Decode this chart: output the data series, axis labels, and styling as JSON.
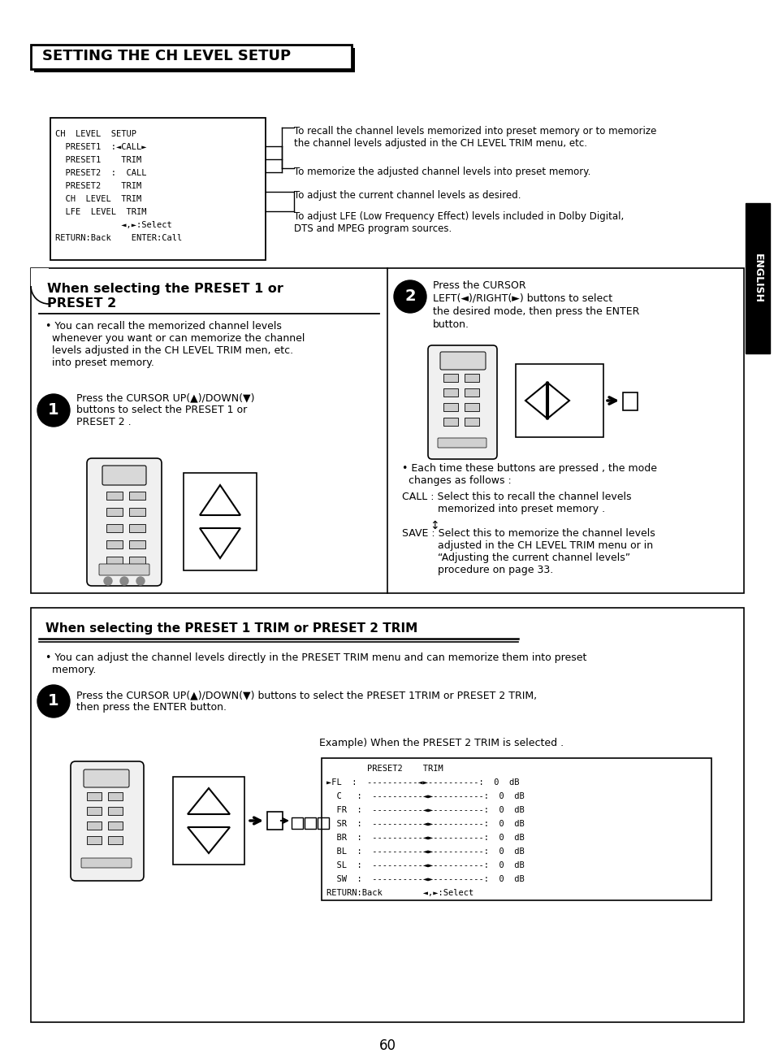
{
  "page_number": "60",
  "bg_color": "#ffffff",
  "title": "SETTING THE CH LEVEL SETUP",
  "ch_level_box_lines": [
    "CH  LEVEL  SETUP",
    "  PRESET1  :◄CALL►",
    "  PRESET1    TRIM",
    "  PRESET2  :  CALL",
    "  PRESET2    TRIM",
    "  CH  LEVEL  TRIM",
    "  LFE  LEVEL  TRIM",
    "             ◄,►:Select",
    "RETURN:Back    ENTER:Call"
  ],
  "ann1": "To recall the channel levels memorized into preset memory or to memorize\nthe channel levels adjusted in the CH LEVEL TRIM menu, etc.",
  "ann2": "To memorize the adjusted channel levels into preset memory.",
  "ann3": "To adjust the current channel levels as desired.",
  "ann4": "To adjust LFE (Low Frequency Effect) levels included in Dolby Digital,\nDTS and MPEG program sources.",
  "s1_title_line1": "When selecting the PRESET 1 or",
  "s1_title_line2": "PRESET 2",
  "s1_bullet": "• You can recall the memorized channel levels\n  whenever you want or can memorize the channel\n  levels adjusted in the CH LEVEL TRIM men, etc.\n  into preset memory.",
  "s1_step1": "Press the CURSOR UP(▲)/DOWN(▼)\nbuttons to select the PRESET 1 or\nPRESET 2 .",
  "s1_step2_line1": "Press the CURSOR",
  "s1_step2_line2": "LEFT(◄)/RIGHT(►) buttons to select",
  "s1_step2_line3": "the desired mode, then press the ENTER",
  "s1_step2_line4": "button.",
  "s1_each_time": "• Each time these buttons are pressed , the mode\n  changes as follows :",
  "s1_call": "CALL : Select this to recall the channel levels\n           memorized into preset memory .",
  "s1_arrow": "↕",
  "s1_save": "SAVE : Select this to memorize the channel levels\n           adjusted in the CH LEVEL TRIM menu or in\n           “Adjusting the current channel levels”\n           procedure on page 33.",
  "s2_title": "When selecting the PRESET 1 TRIM or PRESET 2 TRIM",
  "s2_bullet": "• You can adjust the channel levels directly in the PRESET TRIM menu and can memorize them into preset\n  memory.",
  "s2_step1": "Press the CURSOR UP(▲)/DOWN(▼) buttons to select the PRESET 1TRIM or PRESET 2 TRIM,\nthen press the ENTER button.",
  "s2_example": "Example) When the PRESET 2 TRIM is selected .",
  "trim_lines": [
    "        PRESET2    TRIM",
    "►FL  :  ----------◄►----------:  0  dB",
    "  C   :  ----------◄►----------:  0  dB",
    "  FR  :  ----------◄►----------:  0  dB",
    "  SR  :  ----------◄►----------:  0  dB",
    "  BR  :  ----------◄►----------:  0  dB",
    "  BL  :  ----------◄►----------:  0  dB",
    "  SL  :  ----------◄►----------:  0  dB",
    "  SW  :  ----------◄►----------:  0  dB",
    "RETURN:Back        ◄,►:Select"
  ],
  "english_label": "ENGLISH"
}
